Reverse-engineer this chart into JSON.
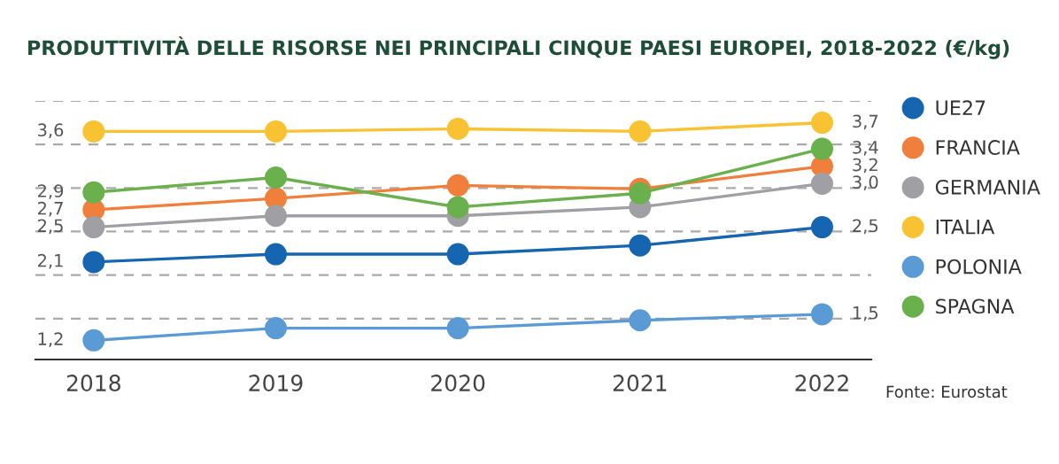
{
  "chart_data": {
    "type": "line",
    "title": "PRODUTTIVITÀ DELLE RISORSE NEI PRINCIPALI CINQUE PAESI EUROPEI, 2018-2022 (€/kg)",
    "categories": [
      "2018",
      "2019",
      "2020",
      "2021",
      "2022"
    ],
    "series": [
      {
        "name": "UE27",
        "color": "#1565b0",
        "values": [
          2.1,
          2.19,
          2.19,
          2.29,
          2.5
        ],
        "value_labels": [
          "2,1",
          null,
          null,
          null,
          "2,5"
        ]
      },
      {
        "name": "FRANCIA",
        "color": "#f07f3c",
        "values": [
          2.7,
          2.83,
          2.98,
          2.94,
          3.2
        ],
        "value_labels": [
          "2,7",
          null,
          null,
          null,
          "3,2"
        ]
      },
      {
        "name": "GERMANIA",
        "color": "#a0a0a4",
        "values": [
          2.5,
          2.63,
          2.63,
          2.73,
          3.0
        ],
        "value_labels": [
          "2,5",
          null,
          null,
          null,
          "3,0"
        ]
      },
      {
        "name": "ITALIA",
        "color": "#f8c232",
        "values": [
          3.6,
          3.6,
          3.63,
          3.6,
          3.7
        ],
        "value_labels": [
          "3,6",
          null,
          null,
          null,
          "3,7"
        ]
      },
      {
        "name": "POLONIA",
        "color": "#5b9bd5",
        "values": [
          1.2,
          1.34,
          1.34,
          1.43,
          1.5
        ],
        "value_labels": [
          "1,2",
          null,
          null,
          null,
          "1,5"
        ]
      },
      {
        "name": "SPAGNA",
        "color": "#6ab04c",
        "values": [
          2.9,
          3.07,
          2.73,
          2.89,
          3.4
        ],
        "value_labels": [
          "2,9",
          null,
          null,
          null,
          "3,4"
        ]
      }
    ],
    "ylim": [
      0.98,
      3.95
    ],
    "yticks": [
      {
        "value": 1.45,
        "label": null
      },
      {
        "value": 1.95,
        "label": null
      },
      {
        "value": 2.45,
        "label": null
      },
      {
        "value": 2.95,
        "label": null
      },
      {
        "value": 3.45,
        "label": null
      },
      {
        "value": 3.95,
        "label": null
      }
    ],
    "grid": "y",
    "marker": "circle",
    "line_style": "solid",
    "legend": "right",
    "annotations": [
      "Fonte: Eurostat"
    ]
  }
}
